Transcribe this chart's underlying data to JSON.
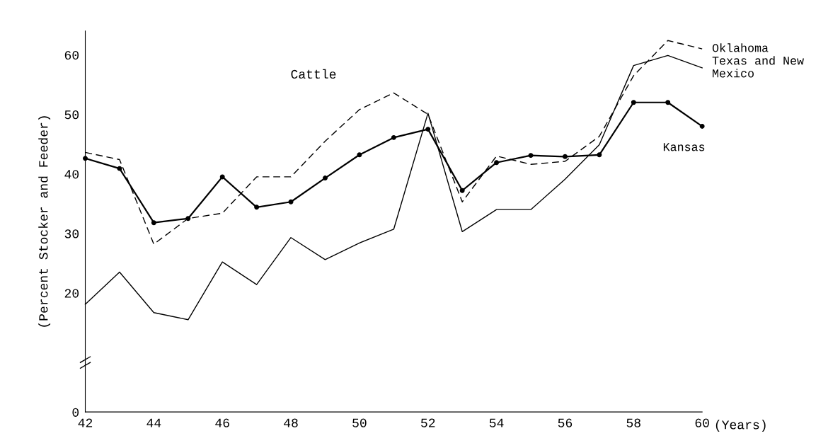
{
  "chart_data": {
    "type": "line",
    "title": "Cattle",
    "xlabel": "(Years)",
    "ylabel": "(Percent Stocker and Feeder)",
    "x": [
      42,
      43,
      44,
      45,
      46,
      47,
      48,
      49,
      50,
      51,
      52,
      53,
      54,
      55,
      56,
      57,
      58,
      59,
      60
    ],
    "series": [
      {
        "name": "Oklahoma",
        "color": "#000000",
        "line_style": "dashed",
        "marker": "none",
        "values": [
          43.6,
          42.4,
          28.2,
          32.5,
          33.4,
          39.5,
          39.5,
          45.5,
          50.8,
          53.6,
          50.0,
          35.3,
          43.0,
          41.6,
          42.1,
          46.3,
          56.5,
          62.4,
          61.0
        ]
      },
      {
        "name": "Texas and New Mexico",
        "color": "#000000",
        "line_style": "solid",
        "marker": "none",
        "values": [
          18.1,
          23.5,
          16.7,
          15.5,
          25.2,
          21.4,
          29.3,
          25.6,
          28.4,
          30.7,
          50.2,
          30.3,
          34.0,
          34.0,
          39.1,
          44.9,
          58.2,
          59.9,
          57.8
        ]
      },
      {
        "name": "Kansas",
        "color": "#000000",
        "line_style": "solid",
        "marker": "circle",
        "values": [
          42.6,
          40.9,
          31.8,
          32.5,
          39.5,
          34.4,
          35.3,
          39.3,
          43.2,
          46.1,
          47.5,
          37.2,
          41.9,
          43.1,
          42.9,
          43.2,
          52.0,
          52.0,
          48.0
        ]
      }
    ],
    "xlim": [
      42,
      60
    ],
    "ylim": [
      0,
      64
    ],
    "xticks": [
      42,
      44,
      46,
      48,
      50,
      52,
      54,
      56,
      58,
      60
    ],
    "yticks": [
      0,
      20,
      30,
      40,
      50,
      60
    ],
    "grid": false,
    "legend": false
  }
}
